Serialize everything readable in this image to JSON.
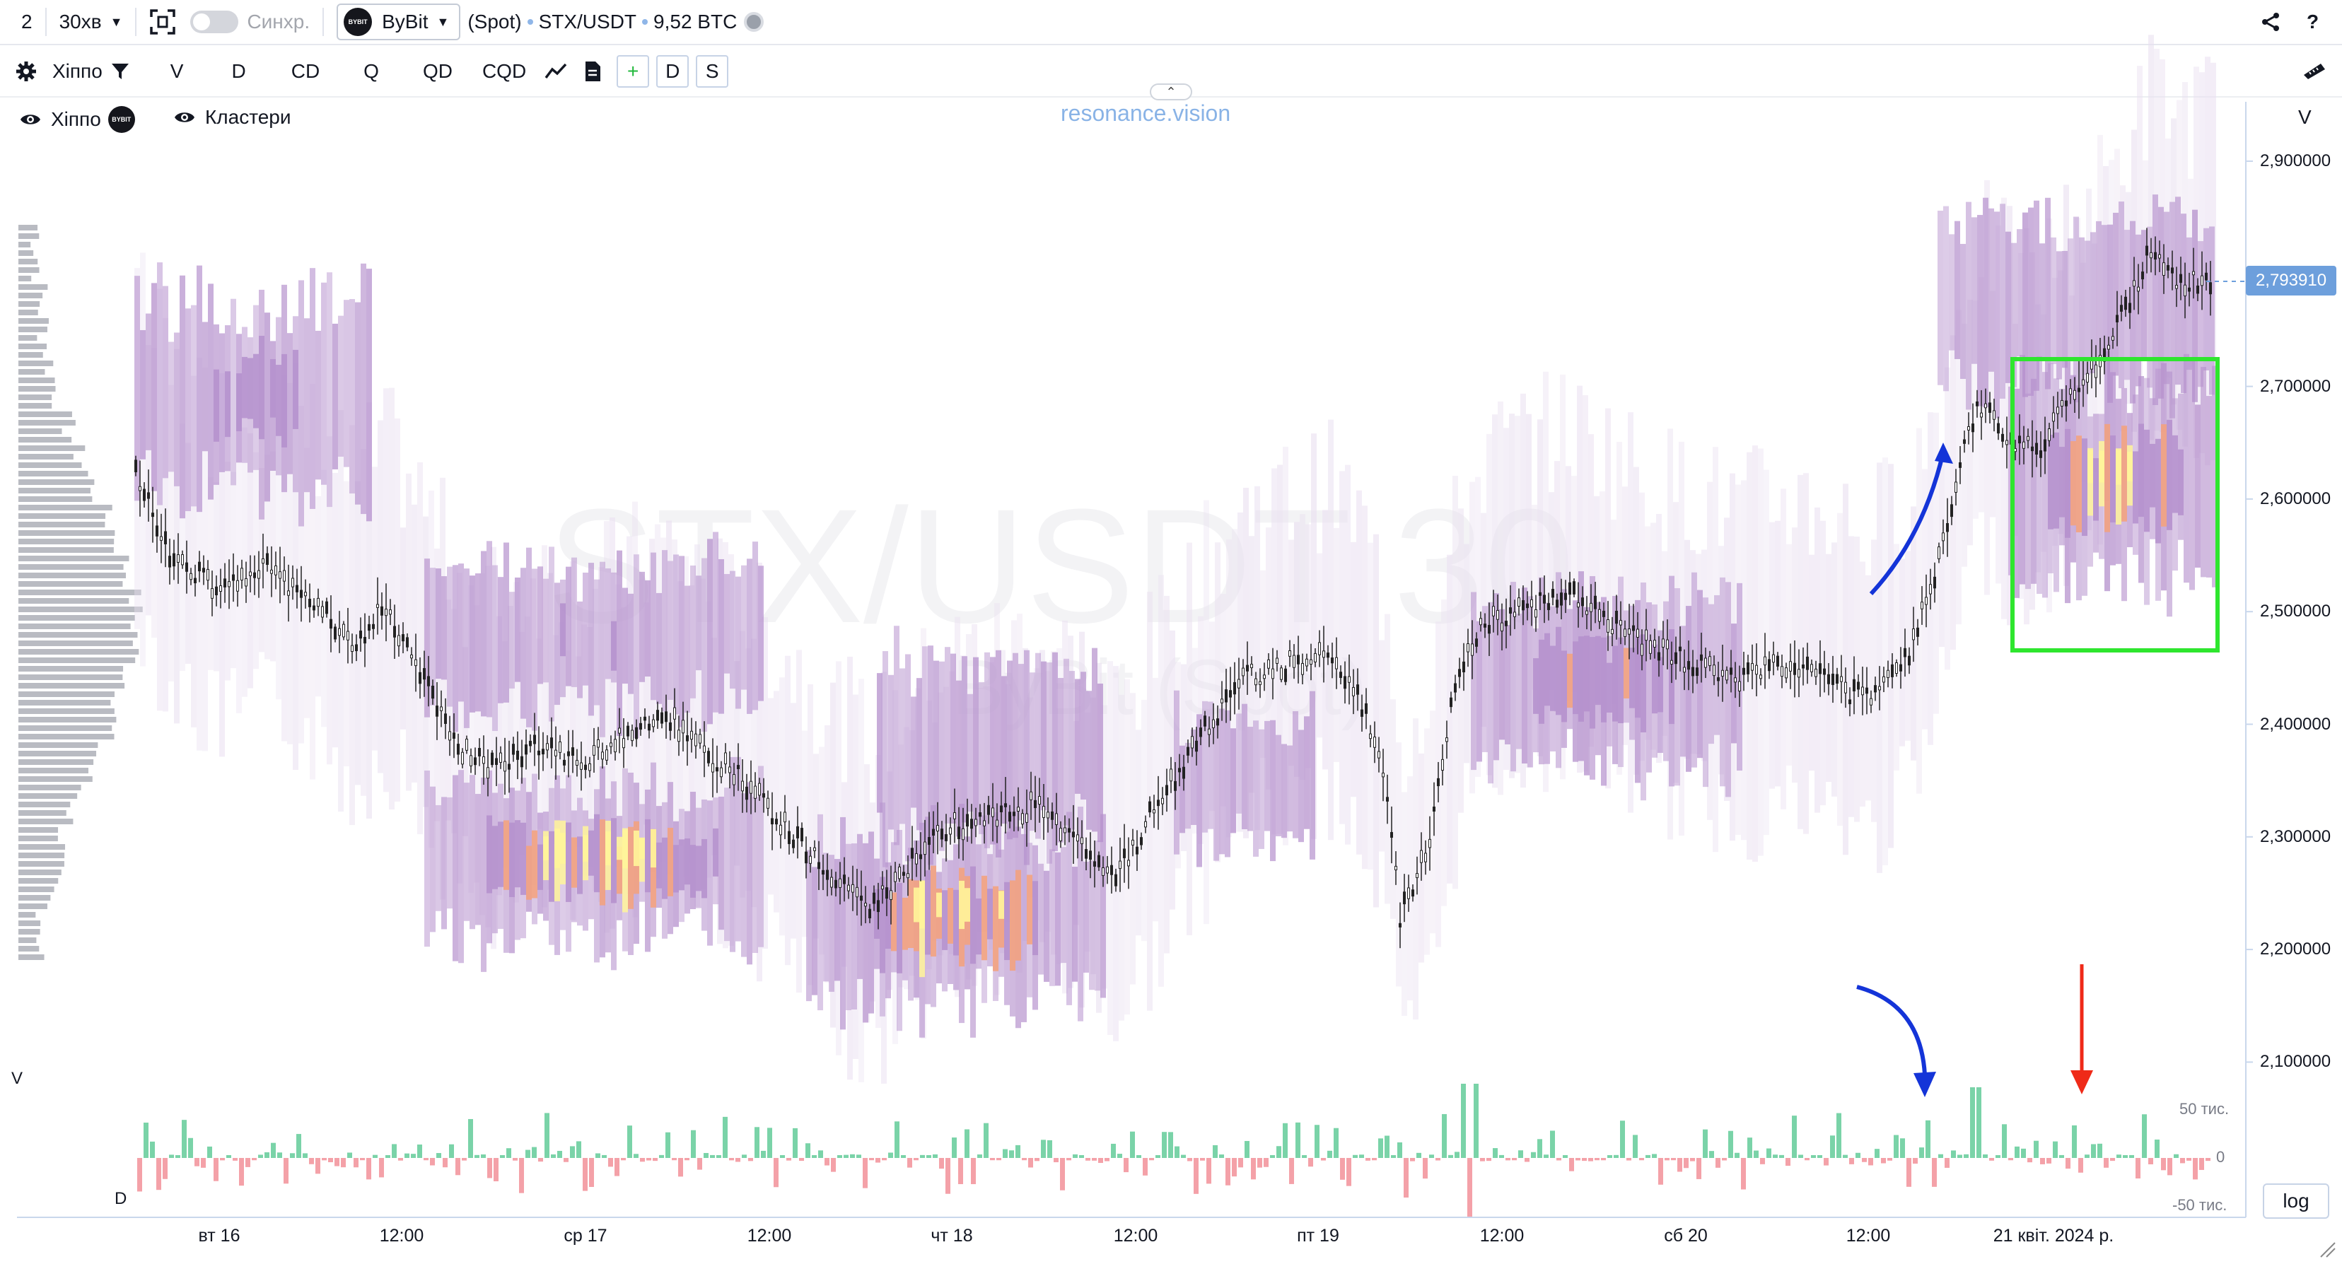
{
  "toolbar": {
    "layout_count": "2",
    "interval": "30хв",
    "sync_label": "Синхр.",
    "exchange": "ByBit",
    "exchange_logo_text": "BYBIT",
    "market_type": "(Spot)",
    "symbol": "STX/USDT",
    "volume": "9,52 BTC",
    "help": "?"
  },
  "toolbar2": {
    "indicator": "Хіппо",
    "buttons": [
      "V",
      "D",
      "CD",
      "Q",
      "QD",
      "CQD"
    ],
    "add": "+",
    "d_button": "D",
    "s_button": "S"
  },
  "legend": {
    "hippo": "Хіппо",
    "clusters": "Кластери",
    "watermark_link": "resonance.vision",
    "watermark_big": "STX/USDT 30",
    "watermark_sub": "ByBit (Spot)"
  },
  "price_axis": {
    "header": "V",
    "ticks": [
      "2,900000",
      "2,800000",
      "2,700000",
      "2,600000",
      "2,500000",
      "2,400000",
      "2,300000",
      "2,200000",
      "2,100000"
    ],
    "tick_values": [
      2.9,
      2.8,
      2.7,
      2.6,
      2.5,
      2.4,
      2.3,
      2.2,
      2.1
    ],
    "current_price": "2,793910",
    "log_label": "log"
  },
  "volume_panel": {
    "v_label": "V",
    "d_label": "D",
    "ticks": [
      "50 тис.",
      "0",
      "-50 тис."
    ]
  },
  "time_axis": [
    "вт 16",
    "12:00",
    "ср 17",
    "12:00",
    "чт 18",
    "12:00",
    "пт 19",
    "12:00",
    "сб 20",
    "12:00",
    "21 квіт. 2024 р."
  ],
  "colors": {
    "up": "#7ad3a8",
    "down": "#f4a1a8",
    "highlight_box": "#2ee62e",
    "arrow_blue": "#1434d8",
    "arrow_red": "#ef2a18",
    "price_tag": "#6d9fdc",
    "heat_low": "#e9dff0",
    "heat_mid": "#b48fcc",
    "heat_high": "#f5a17a",
    "heat_max": "#fff59a"
  },
  "icons": [
    "gear-icon",
    "filter-icon",
    "expand-icon",
    "share-icon",
    "eye-icon",
    "line-chart-icon",
    "document-icon",
    "ruler-icon",
    "resize-icon"
  ]
}
